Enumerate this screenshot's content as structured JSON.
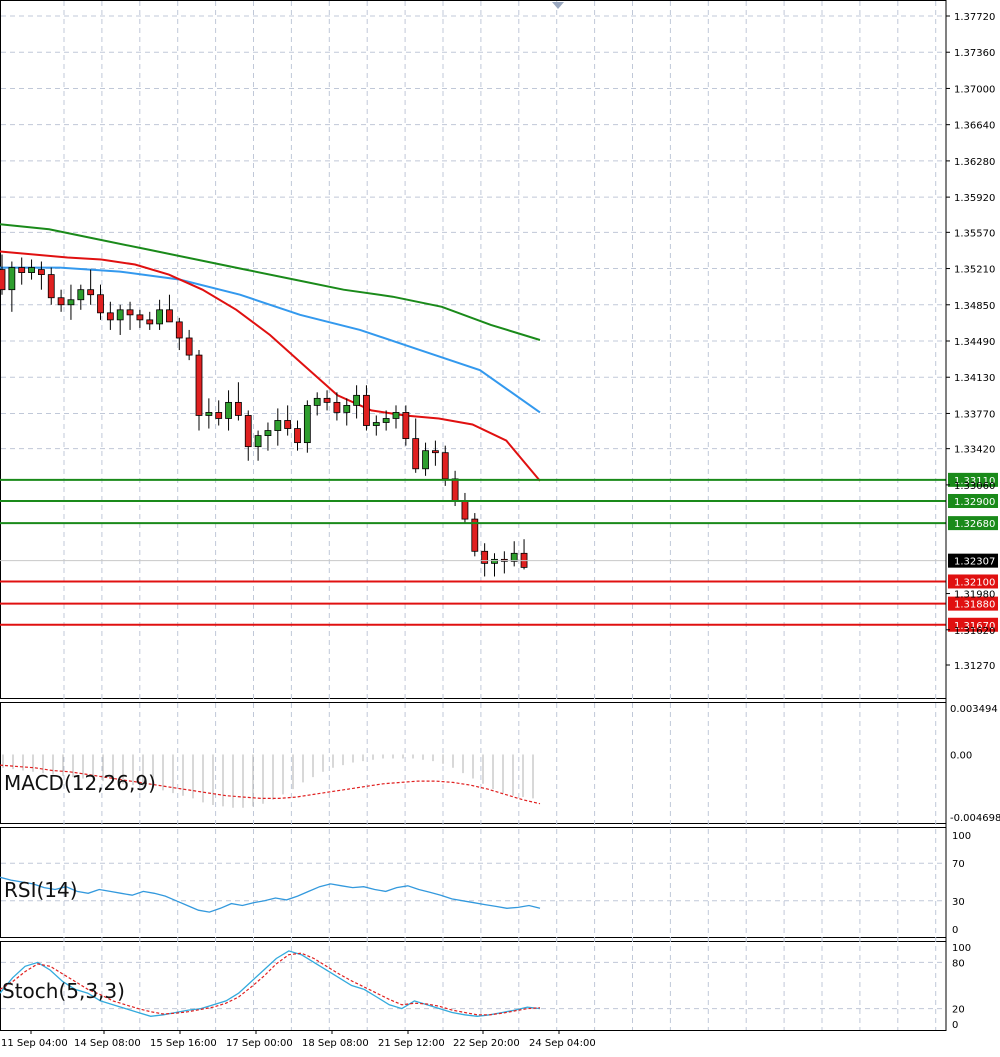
{
  "main_pane": {
    "price_ticks": [
      "1.37720",
      "1.37360",
      "1.37000",
      "1.36640",
      "1.36280",
      "1.35920",
      "1.35570",
      "1.35210",
      "1.34850",
      "1.34490",
      "1.34130",
      "1.33770",
      "1.33420",
      "1.33060",
      "1.31980",
      "1.31620",
      "1.31270"
    ],
    "level_labels": {
      "resistance": [
        "1.33110",
        "1.32900",
        "1.32680"
      ],
      "support": [
        "1.32100",
        "1.31880",
        "1.31670"
      ],
      "current": "1.32307"
    }
  },
  "macd_pane": {
    "label": "MACD(12,26,9)",
    "ticks": [
      "0.003494",
      "0.00",
      "-0.004698"
    ]
  },
  "rsi_pane": {
    "label": "RSI(14)",
    "ticks": [
      "100",
      "70",
      "30",
      "0"
    ]
  },
  "stoch_pane": {
    "label": "Stoch(5,3,3)",
    "ticks": [
      "100",
      "80",
      "20",
      "0"
    ]
  },
  "time_axis": [
    "11 Sep 04:00",
    "14 Sep 08:00",
    "15 Sep 16:00",
    "17 Sep 00:00",
    "18 Sep 08:00",
    "21 Sep 12:00",
    "22 Sep 20:00",
    "24 Sep 04:00"
  ],
  "colors": {
    "bull_candle": "#2e9e2e",
    "bear_candle": "#e02020",
    "ma_fast": "#e01010",
    "ma_mid": "#3399ee",
    "ma_slow": "#1a8a1a",
    "resistance_line": "#1a8a1a",
    "support_line": "#e01010",
    "rsi_line": "#3399dd",
    "stoch_main": "#33aadd",
    "stoch_signal": "#e02020",
    "grid": "#c0c8d8"
  },
  "chart_data": {
    "type": "candlestick",
    "timeframe_labels": [
      "11 Sep 04:00",
      "14 Sep 08:00",
      "15 Sep 16:00",
      "17 Sep 00:00",
      "18 Sep 08:00",
      "21 Sep 12:00",
      "22 Sep 20:00",
      "24 Sep 04:00"
    ],
    "ohlc": [
      [
        1.352,
        1.3535,
        1.3495,
        1.35
      ],
      [
        1.35,
        1.3528,
        1.3478,
        1.3522
      ],
      [
        1.3522,
        1.3532,
        1.3505,
        1.3517
      ],
      [
        1.3517,
        1.353,
        1.351,
        1.3522
      ],
      [
        1.352,
        1.3528,
        1.35,
        1.3515
      ],
      [
        1.3515,
        1.3522,
        1.3485,
        1.3492
      ],
      [
        1.3492,
        1.35,
        1.3478,
        1.3485
      ],
      [
        1.3485,
        1.3505,
        1.347,
        1.349
      ],
      [
        1.349,
        1.3505,
        1.348,
        1.35
      ],
      [
        1.35,
        1.352,
        1.3485,
        1.3495
      ],
      [
        1.3495,
        1.3505,
        1.347,
        1.3477
      ],
      [
        1.3477,
        1.3488,
        1.346,
        1.347
      ],
      [
        1.347,
        1.3485,
        1.3455,
        1.348
      ],
      [
        1.348,
        1.3488,
        1.346,
        1.3475
      ],
      [
        1.3475,
        1.348,
        1.3462,
        1.347
      ],
      [
        1.347,
        1.3478,
        1.346,
        1.3466
      ],
      [
        1.3466,
        1.349,
        1.346,
        1.348
      ],
      [
        1.348,
        1.3495,
        1.347,
        1.3468
      ],
      [
        1.3468,
        1.3472,
        1.344,
        1.3452
      ],
      [
        1.3452,
        1.346,
        1.343,
        1.3435
      ],
      [
        1.3435,
        1.344,
        1.336,
        1.3375
      ],
      [
        1.3375,
        1.3392,
        1.3362,
        1.3378
      ],
      [
        1.3378,
        1.339,
        1.3365,
        1.3372
      ],
      [
        1.3372,
        1.34,
        1.336,
        1.3388
      ],
      [
        1.3388,
        1.3408,
        1.337,
        1.3375
      ],
      [
        1.3375,
        1.338,
        1.333,
        1.3344
      ],
      [
        1.3344,
        1.336,
        1.333,
        1.3355
      ],
      [
        1.3355,
        1.3368,
        1.334,
        1.336
      ],
      [
        1.336,
        1.3382,
        1.3345,
        1.337
      ],
      [
        1.337,
        1.3385,
        1.3355,
        1.3362
      ],
      [
        1.3362,
        1.337,
        1.334,
        1.3348
      ],
      [
        1.3348,
        1.339,
        1.3338,
        1.3385
      ],
      [
        1.3385,
        1.3398,
        1.3375,
        1.3392
      ],
      [
        1.3392,
        1.34,
        1.338,
        1.3388
      ],
      [
        1.3388,
        1.3398,
        1.337,
        1.3378
      ],
      [
        1.3378,
        1.3392,
        1.3365,
        1.3385
      ],
      [
        1.3385,
        1.3405,
        1.3372,
        1.3395
      ],
      [
        1.3395,
        1.3405,
        1.336,
        1.3365
      ],
      [
        1.3365,
        1.3375,
        1.3355,
        1.3368
      ],
      [
        1.3368,
        1.338,
        1.336,
        1.3372
      ],
      [
        1.3372,
        1.3385,
        1.3362,
        1.3378
      ],
      [
        1.3378,
        1.3385,
        1.3345,
        1.3352
      ],
      [
        1.3352,
        1.3372,
        1.3318,
        1.3322
      ],
      [
        1.3322,
        1.3348,
        1.3315,
        1.334
      ],
      [
        1.334,
        1.335,
        1.3325,
        1.3338
      ],
      [
        1.3338,
        1.3345,
        1.3305,
        1.3312
      ],
      [
        1.3312,
        1.332,
        1.3285,
        1.329
      ],
      [
        1.329,
        1.3298,
        1.3268,
        1.3272
      ],
      [
        1.3272,
        1.3278,
        1.3235,
        1.324
      ],
      [
        1.324,
        1.3248,
        1.3215,
        1.3228
      ],
      [
        1.3228,
        1.3238,
        1.3215,
        1.3232
      ],
      [
        1.3232,
        1.324,
        1.3218,
        1.323
      ],
      [
        1.323,
        1.325,
        1.3225,
        1.3238
      ],
      [
        1.3238,
        1.3252,
        1.3222,
        1.3224
      ]
    ],
    "moving_averages": {
      "fast_red": [
        1.3538,
        1.3535,
        1.3532,
        1.353,
        1.3525,
        1.3515,
        1.35,
        1.348,
        1.3455,
        1.3425,
        1.3395,
        1.338,
        1.3375,
        1.3372,
        1.3366,
        1.335,
        1.331
      ],
      "mid_blue": [
        1.3522,
        1.3522,
        1.3518,
        1.351,
        1.3495,
        1.3475,
        1.346,
        1.344,
        1.342,
        1.3378
      ],
      "slow_green": [
        1.3565,
        1.356,
        1.355,
        1.354,
        1.353,
        1.352,
        1.351,
        1.35,
        1.3493,
        1.3483,
        1.3465,
        1.345
      ]
    },
    "horizontal_levels": {
      "resistance": [
        1.3311,
        1.329,
        1.3268
      ],
      "support": [
        1.321,
        1.3188,
        1.3167
      ],
      "current": 1.32307
    },
    "y_range": [
      1.3127,
      1.379
    ],
    "indicators": {
      "macd": {
        "range": [
          -0.004698,
          0.003494
        ],
        "histogram": [
          -0.001,
          -0.0011,
          -0.0012,
          -0.0013,
          -0.0014,
          -0.0015,
          -0.0016,
          -0.0017,
          -0.0018,
          -0.0019,
          -0.002,
          -0.0021,
          -0.0022,
          -0.0023,
          -0.0024,
          -0.0025,
          -0.0027,
          -0.0029,
          -0.0031,
          -0.0033,
          -0.0036,
          -0.0038,
          -0.0039,
          -0.004,
          -0.004,
          -0.0039,
          -0.0037,
          -0.0034,
          -0.003,
          -0.0026,
          -0.0021,
          -0.0017,
          -0.0013,
          -0.001,
          -0.0008,
          -0.0006,
          -0.0005,
          -0.0004,
          -0.0003,
          -0.0003,
          -0.0003,
          -0.0003,
          -0.0004,
          -0.0005,
          -0.0007,
          -0.001,
          -0.0014,
          -0.0018,
          -0.0022,
          -0.0026,
          -0.0029,
          -0.0031,
          -0.0032,
          -0.0033
        ],
        "signal": [
          -0.0008,
          -0.0009,
          -0.001,
          -0.0012,
          -0.0013,
          -0.0015,
          -0.0017,
          -0.0019,
          -0.0021,
          -0.0023,
          -0.0025,
          -0.0027,
          -0.0029,
          -0.0031,
          -0.0032,
          -0.0033,
          -0.0033,
          -0.0032,
          -0.003,
          -0.0028,
          -0.0026,
          -0.0024,
          -0.0022,
          -0.0021,
          -0.002,
          -0.002,
          -0.0021,
          -0.0023,
          -0.0026,
          -0.003,
          -0.0034,
          -0.0037
        ]
      },
      "rsi": [
        55,
        52,
        50,
        48,
        44,
        42,
        45,
        40,
        38,
        42,
        40,
        38,
        36,
        40,
        38,
        35,
        30,
        25,
        20,
        18,
        22,
        27,
        25,
        28,
        30,
        33,
        31,
        35,
        40,
        45,
        48,
        46,
        44,
        45,
        42,
        40,
        44,
        46,
        42,
        39,
        36,
        32,
        30,
        28,
        26,
        24,
        22,
        23,
        25,
        22
      ],
      "stochastic": {
        "main": [
          40,
          60,
          75,
          80,
          70,
          55,
          45,
          40,
          30,
          25,
          20,
          15,
          10,
          12,
          15,
          18,
          20,
          25,
          30,
          40,
          55,
          70,
          85,
          95,
          90,
          80,
          70,
          60,
          50,
          45,
          35,
          25,
          20,
          30,
          25,
          20,
          15,
          12,
          10,
          12,
          15,
          18,
          22,
          20
        ],
        "signal": [
          45,
          55,
          68,
          78,
          75,
          65,
          55,
          45,
          38,
          30,
          25,
          20,
          16,
          13,
          14,
          16,
          19,
          22,
          27,
          35,
          48,
          62,
          78,
          90,
          92,
          85,
          75,
          65,
          56,
          48,
          40,
          32,
          25,
          27,
          26,
          23,
          18,
          15,
          12,
          12,
          14,
          17,
          20,
          21
        ]
      }
    }
  }
}
